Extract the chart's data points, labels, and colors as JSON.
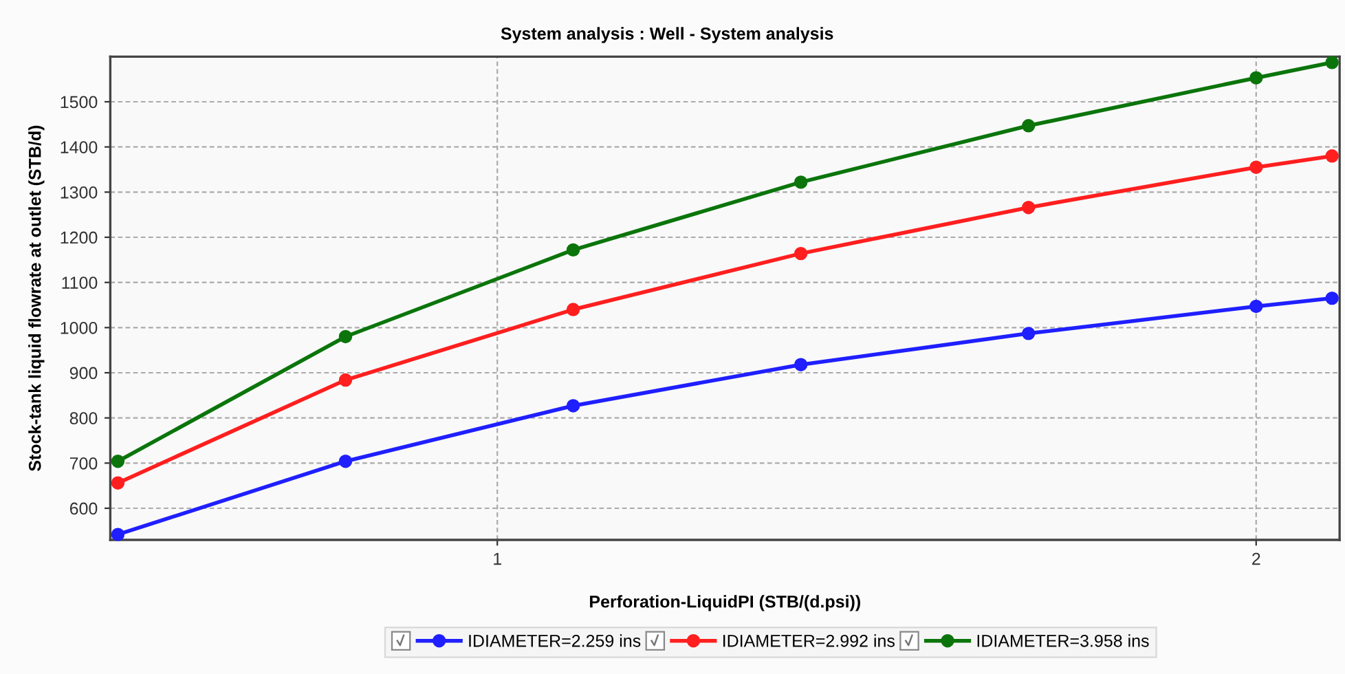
{
  "chart_data": {
    "type": "line",
    "title": "System analysis : Well - System analysis",
    "xlabel": "Perforation-LiquidPI (STB/(d.psi))",
    "ylabel": "Stock-tank liquid flowrate at outlet (STB/d)",
    "x": [
      0.5,
      0.8,
      1.1,
      1.4,
      1.7,
      2.0,
      2.1
    ],
    "series": [
      {
        "name": "IDIAMETER=2.259 ins",
        "color": "#1f1fff",
        "values": [
          542,
          704,
          827,
          918,
          987,
          1047,
          1065
        ]
      },
      {
        "name": "IDIAMETER=2.992 ins",
        "color": "#ff1f1f",
        "values": [
          656,
          884,
          1040,
          1164,
          1266,
          1355,
          1380
        ]
      },
      {
        "name": "IDIAMETER=3.958 ins",
        "color": "#0b750b",
        "values": [
          704,
          980,
          1172,
          1322,
          1447,
          1553,
          1587
        ]
      }
    ],
    "xlim": [
      0.49,
      2.11
    ],
    "ylim": [
      530,
      1600
    ],
    "xticks": [
      1,
      2
    ],
    "yticks": [
      600,
      700,
      800,
      900,
      1000,
      1100,
      1200,
      1300,
      1400,
      1500
    ],
    "grid": true,
    "legend": "bottom",
    "marker": "circle",
    "line_style": "solid"
  }
}
